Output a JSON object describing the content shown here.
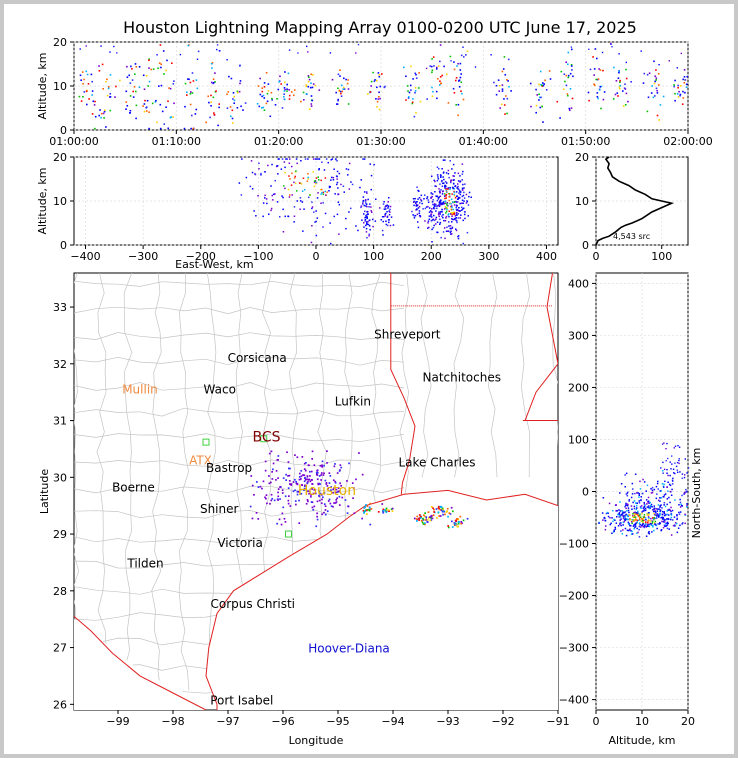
{
  "title": "Houston Lightning Mapping Array 0100-0200 UTC June 17, 2025",
  "chart_data": [
    {
      "id": "time_altitude",
      "type": "scatter",
      "ylabel": "Altitude, km",
      "xlim": [
        "01:00:00",
        "02:00:00"
      ],
      "ylim": [
        0,
        20
      ],
      "xticks": [
        "01:00:00",
        "01:10:00",
        "01:20:00",
        "01:30:00",
        "01:40:00",
        "01:50:00",
        "02:00:00"
      ],
      "yticks": [
        "0",
        "10",
        "20"
      ],
      "clusters": [
        {
          "t": "01:01:10",
          "alt": 9,
          "spread": 3
        },
        {
          "t": "01:03:00",
          "alt": 7,
          "spread": 4
        },
        {
          "t": "01:05:30",
          "alt": 9,
          "spread": 3
        },
        {
          "t": "01:07:20",
          "alt": 8,
          "spread": 4
        },
        {
          "t": "01:09:00",
          "alt": 9,
          "spread": 5
        },
        {
          "t": "01:11:20",
          "alt": 8,
          "spread": 5
        },
        {
          "t": "01:13:30",
          "alt": 8,
          "spread": 4
        },
        {
          "t": "01:15:40",
          "alt": 8,
          "spread": 3
        },
        {
          "t": "01:18:30",
          "alt": 8,
          "spread": 2
        },
        {
          "t": "01:20:30",
          "alt": 9,
          "spread": 2
        },
        {
          "t": "01:23:00",
          "alt": 9,
          "spread": 2
        },
        {
          "t": "01:26:00",
          "alt": 10,
          "spread": 2
        },
        {
          "t": "01:29:30",
          "alt": 9,
          "spread": 2
        },
        {
          "t": "01:33:00",
          "alt": 10,
          "spread": 3
        },
        {
          "t": "01:35:30",
          "alt": 12,
          "spread": 3
        },
        {
          "t": "01:37:30",
          "alt": 12,
          "spread": 4
        },
        {
          "t": "01:42:00",
          "alt": 10,
          "spread": 3
        },
        {
          "t": "01:45:30",
          "alt": 9,
          "spread": 3
        },
        {
          "t": "01:48:00",
          "alt": 11,
          "spread": 4
        },
        {
          "t": "01:51:00",
          "alt": 11,
          "spread": 4
        },
        {
          "t": "01:53:30",
          "alt": 10,
          "spread": 3
        },
        {
          "t": "01:56:30",
          "alt": 10,
          "spread": 3
        },
        {
          "t": "01:59:20",
          "alt": 10,
          "spread": 2
        }
      ]
    },
    {
      "id": "east_west_altitude",
      "type": "scatter",
      "xlabel": "East-West, km",
      "ylabel": "Altitude, km",
      "xlim": [
        -420,
        420
      ],
      "ylim": [
        0,
        20
      ],
      "xticks": [
        "−400",
        "−300",
        "−200",
        "−100",
        "0",
        "100",
        "200",
        "300",
        "400"
      ],
      "yticks": [
        "0",
        "10",
        "20"
      ],
      "clusters": [
        {
          "x": -20,
          "alt": 14,
          "sx": 55,
          "sa": 5,
          "n": 220
        },
        {
          "x": 88,
          "alt": 7,
          "sx": 5,
          "sa": 3,
          "n": 60
        },
        {
          "x": 122,
          "alt": 7,
          "sx": 5,
          "sa": 2,
          "n": 40
        },
        {
          "x": 175,
          "alt": 9,
          "sx": 5,
          "sa": 2,
          "n": 40
        },
        {
          "x": 200,
          "alt": 9,
          "sx": 7,
          "sa": 3,
          "n": 60
        },
        {
          "x": 232,
          "alt": 10,
          "sx": 14,
          "sa": 4,
          "n": 320
        }
      ]
    },
    {
      "id": "altitude_histogram",
      "type": "line",
      "xlim": [
        0,
        140
      ],
      "ylim": [
        0,
        20
      ],
      "xticks": [
        "0",
        "100"
      ],
      "yticks": [
        "0",
        "10",
        "20"
      ],
      "annotation": "4,543 src",
      "counts": [
        [
          0,
          0
        ],
        [
          3,
          1
        ],
        [
          10,
          1.5
        ],
        [
          20,
          2
        ],
        [
          30,
          3
        ],
        [
          38,
          4
        ],
        [
          45,
          4.5
        ],
        [
          55,
          5
        ],
        [
          70,
          6
        ],
        [
          85,
          7.5
        ],
        [
          100,
          8.5
        ],
        [
          115,
          9.5
        ],
        [
          100,
          10
        ],
        [
          85,
          10.5
        ],
        [
          75,
          11.5
        ],
        [
          60,
          12.5
        ],
        [
          50,
          13.5
        ],
        [
          35,
          14.5
        ],
        [
          25,
          15.5
        ],
        [
          22,
          16.5
        ],
        [
          18,
          17.5
        ],
        [
          20,
          18.5
        ],
        [
          15,
          19.5
        ],
        [
          20,
          20
        ]
      ]
    },
    {
      "id": "plan_view",
      "type": "scatter",
      "xlabel": "Longitude",
      "ylabel": "Latitude",
      "xlim": [
        -99.8,
        -91
      ],
      "ylim": [
        25.9,
        33.6
      ],
      "xticks": [
        "−99",
        "−98",
        "−97",
        "−96",
        "−95",
        "−94",
        "−93",
        "−92",
        "−91"
      ],
      "xtick_values": [
        -99,
        -98,
        -97,
        -96,
        -95,
        -94,
        -93,
        -92,
        -91
      ],
      "yticks": [
        "26",
        "27",
        "28",
        "29",
        "30",
        "31",
        "32",
        "33"
      ],
      "ytick_values": [
        26,
        27,
        28,
        29,
        30,
        31,
        32,
        33
      ],
      "places": [
        {
          "name": "Shreveport",
          "lon": -93.74,
          "lat": 32.52,
          "color": "#000000"
        },
        {
          "name": "Corsicana",
          "lon": -96.47,
          "lat": 32.1,
          "color": "#000000"
        },
        {
          "name": "Natchitoches",
          "lon": -92.75,
          "lat": 31.76,
          "color": "#000000"
        },
        {
          "name": "Mullin",
          "lon": -98.6,
          "lat": 31.55,
          "color": "#f08a40"
        },
        {
          "name": "Waco",
          "lon": -97.15,
          "lat": 31.55,
          "color": "#000000"
        },
        {
          "name": "Lufkin",
          "lon": -94.73,
          "lat": 31.34,
          "color": "#000000"
        },
        {
          "name": "BCS",
          "lon": -96.3,
          "lat": 30.7,
          "color": "#800000"
        },
        {
          "name": "ATX",
          "lon": -97.5,
          "lat": 30.3,
          "color": "#f08a40"
        },
        {
          "name": "Bastrop",
          "lon": -96.98,
          "lat": 30.16,
          "color": "#000000"
        },
        {
          "name": "Lake Charles",
          "lon": -93.2,
          "lat": 30.26,
          "color": "#000000"
        },
        {
          "name": "Boerne",
          "lon": -98.72,
          "lat": 29.82,
          "color": "#000000"
        },
        {
          "name": "Houston",
          "lon": -95.2,
          "lat": 29.76,
          "color": "#e8b000"
        },
        {
          "name": "Shiner",
          "lon": -97.16,
          "lat": 29.44,
          "color": "#000000"
        },
        {
          "name": "Victoria",
          "lon": -96.78,
          "lat": 28.84,
          "color": "#000000"
        },
        {
          "name": "Tilden",
          "lon": -98.5,
          "lat": 28.48,
          "color": "#000000"
        },
        {
          "name": "Corpus Christi",
          "lon": -96.55,
          "lat": 27.77,
          "color": "#000000"
        },
        {
          "name": "Hoover-Diana",
          "lon": -94.8,
          "lat": 26.98,
          "color": "#1010d0"
        },
        {
          "name": "Port Isabel",
          "lon": -96.75,
          "lat": 26.07,
          "color": "#000000"
        }
      ],
      "stations": [
        {
          "lon": -97.4,
          "lat": 30.62
        },
        {
          "lon": -96.35,
          "lat": 30.68
        },
        {
          "lon": -95.9,
          "lat": 29.0
        }
      ],
      "clusters": [
        {
          "lon": -95.55,
          "lat": 29.85,
          "slon": 0.45,
          "slat": 0.3,
          "n": 260
        },
        {
          "lon": -94.5,
          "lat": 29.45,
          "slon": 0.05,
          "slat": 0.05,
          "n": 20
        },
        {
          "lon": -94.15,
          "lat": 29.45,
          "slon": 0.08,
          "slat": 0.04,
          "n": 20
        },
        {
          "lon": -93.45,
          "lat": 29.3,
          "slon": 0.1,
          "slat": 0.05,
          "n": 40
        },
        {
          "lon": -93.1,
          "lat": 29.4,
          "slon": 0.1,
          "slat": 0.05,
          "n": 40
        },
        {
          "lon": -92.85,
          "lat": 29.22,
          "slon": 0.08,
          "slat": 0.05,
          "n": 30
        }
      ]
    },
    {
      "id": "altitude_north_south",
      "type": "scatter",
      "xlabel": "Altitude, km",
      "ylabel": "North-South, km",
      "xlim": [
        0,
        20
      ],
      "ylim": [
        -420,
        420
      ],
      "xticks": [
        "0",
        "10",
        "20"
      ],
      "yticks": [
        "−400",
        "−300",
        "−200",
        "−100",
        "0",
        "100",
        "200",
        "300",
        "400"
      ],
      "clusters": [
        {
          "alt": 10,
          "ns": -50,
          "salt": 4,
          "sns": 14,
          "n": 420
        },
        {
          "alt": 13,
          "ns": -5,
          "salt": 4,
          "sns": 20,
          "n": 120
        }
      ]
    }
  ]
}
